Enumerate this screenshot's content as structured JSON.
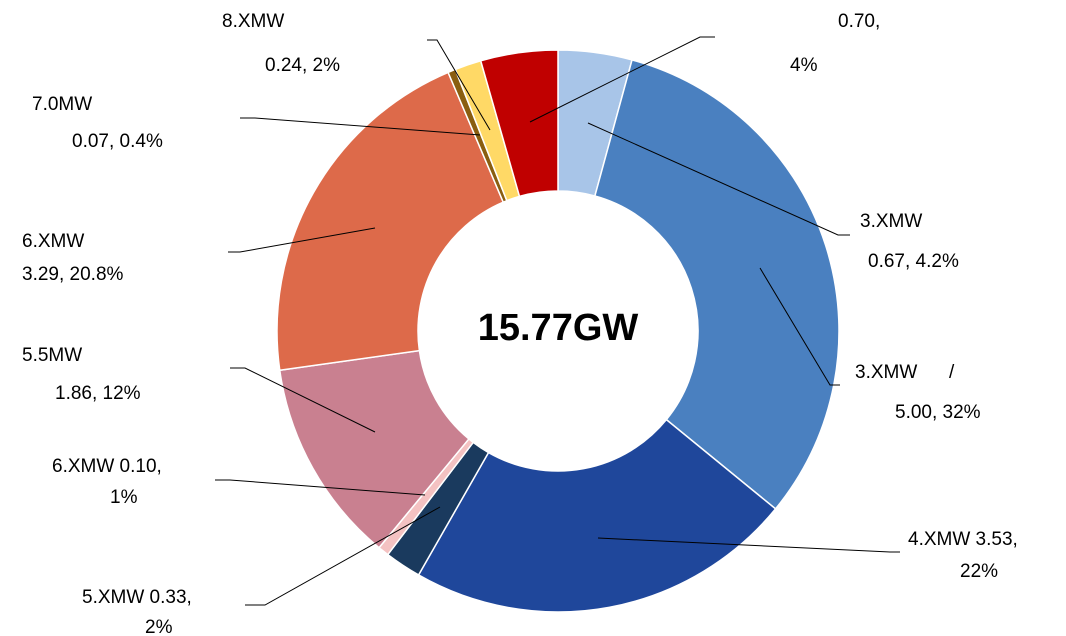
{
  "chart_data": {
    "type": "donut",
    "center_label": "15.77GW",
    "categories": [
      "3.XMW",
      "3.XMW      /",
      "4.XMW 3.53,",
      "5.XMW 0.33,",
      "6.XMW 0.10,",
      "5.5MW",
      "6.XMW",
      "7.0MW",
      "8.XMW",
      null
    ],
    "values": [
      0.67,
      5.0,
      3.53,
      0.33,
      0.1,
      1.86,
      3.29,
      0.07,
      0.24,
      0.7
    ],
    "value_labels": [
      "0.67, 4.2%",
      "5.00, 32%",
      "22%",
      "2%",
      "1%",
      "1.86, 12%",
      "3.29, 20.8%",
      "0.07, 0.4%",
      "0.24, 2%",
      "0.70,\n4%"
    ],
    "colors": [
      "#a8c5e8",
      "#4a80c0",
      "#1f479b",
      "#1a3a5e",
      "#f4c2c2",
      "#c98090",
      "#dd6a4a",
      "#8a5e10",
      "#ffd966",
      "#c00000"
    ]
  }
}
